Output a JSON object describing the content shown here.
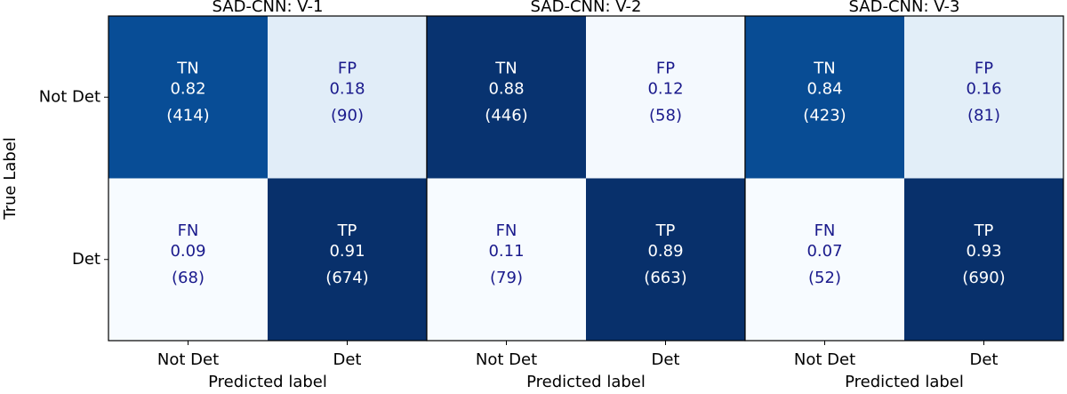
{
  "chart_data": [
    {
      "type": "heatmap",
      "title": "SAD-CNN: V-1",
      "xlabel": "Predicted label",
      "ylabel": "True Label",
      "x_categories": [
        "Not Det",
        "Det"
      ],
      "y_categories": [
        "Not Det",
        "Det"
      ],
      "cell_labels": [
        [
          "TN",
          "FP"
        ],
        [
          "FN",
          "TP"
        ]
      ],
      "values": [
        [
          0.82,
          0.18
        ],
        [
          0.09,
          0.91
        ]
      ],
      "counts": [
        [
          414,
          90
        ],
        [
          68,
          674
        ]
      ],
      "count_labels": [
        [
          "(414)",
          "(90)"
        ],
        [
          "(68)",
          "(674)"
        ]
      ]
    },
    {
      "type": "heatmap",
      "title": "SAD-CNN: V-2",
      "xlabel": "Predicted label",
      "x_categories": [
        "Not Det",
        "Det"
      ],
      "cell_labels": [
        [
          "TN",
          "FP"
        ],
        [
          "FN",
          "TP"
        ]
      ],
      "values": [
        [
          0.88,
          0.12
        ],
        [
          0.11,
          0.89
        ]
      ],
      "counts": [
        [
          446,
          58
        ],
        [
          79,
          663
        ]
      ],
      "count_labels": [
        [
          "(446)",
          "(58)"
        ],
        [
          "(79)",
          "(663)"
        ]
      ]
    },
    {
      "type": "heatmap",
      "title": "SAD-CNN: V-3",
      "xlabel": "Predicted label",
      "x_categories": [
        "Not Det",
        "Det"
      ],
      "cell_labels": [
        [
          "TN",
          "FP"
        ],
        [
          "FN",
          "TP"
        ]
      ],
      "values": [
        [
          0.84,
          0.16
        ],
        [
          0.07,
          0.93
        ]
      ],
      "counts": [
        [
          423,
          81
        ],
        [
          52,
          690
        ]
      ],
      "count_labels": [
        [
          "(423)",
          "(81)"
        ],
        [
          "(52)",
          "(690)"
        ]
      ]
    }
  ]
}
